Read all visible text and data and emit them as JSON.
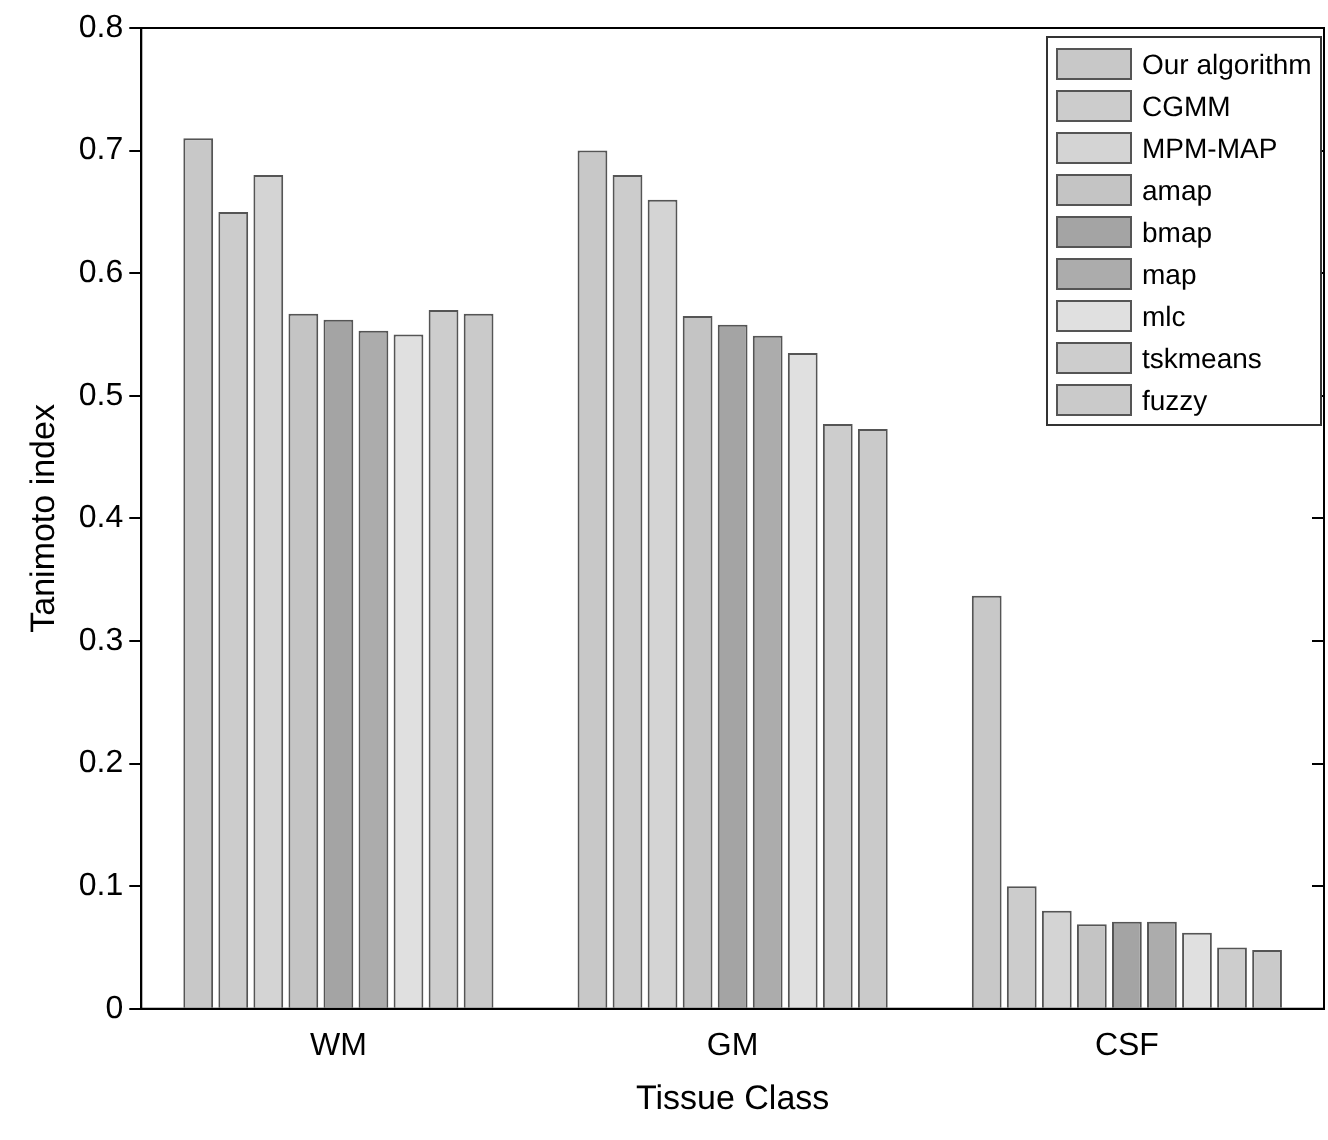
{
  "chart_data": {
    "type": "bar",
    "xlabel": "Tissue Class",
    "ylabel": "Tanimoto index",
    "categories": [
      "WM",
      "GM",
      "CSF"
    ],
    "series": [
      {
        "name": "Our algorithm",
        "color": "#c8c8c8",
        "values": [
          0.71,
          0.7,
          0.337
        ]
      },
      {
        "name": "CGMM",
        "color": "#cccccc",
        "values": [
          0.65,
          0.68,
          0.1
        ]
      },
      {
        "name": "MPM-MAP",
        "color": "#d4d4d4",
        "values": [
          0.68,
          0.66,
          0.08
        ]
      },
      {
        "name": "amap",
        "color": "#c4c4c4",
        "values": [
          0.567,
          0.565,
          0.069
        ]
      },
      {
        "name": "bmap",
        "color": "#a4a4a4",
        "values": [
          0.562,
          0.558,
          0.071
        ]
      },
      {
        "name": "map",
        "color": "#acacac",
        "values": [
          0.553,
          0.549,
          0.071
        ]
      },
      {
        "name": "mlc",
        "color": "#e0e0e0",
        "values": [
          0.55,
          0.535,
          0.062
        ]
      },
      {
        "name": "tskmeans",
        "color": "#cdcdcd",
        "values": [
          0.57,
          0.477,
          0.05
        ]
      },
      {
        "name": "fuzzy",
        "color": "#cacaca",
        "values": [
          0.567,
          0.473,
          0.048
        ]
      }
    ],
    "ylim": [
      0,
      0.8
    ],
    "yticks": [
      0,
      0.1,
      0.2,
      0.3,
      0.4,
      0.5,
      0.6,
      0.7,
      0.8
    ],
    "grid": false,
    "legend": "top right"
  }
}
